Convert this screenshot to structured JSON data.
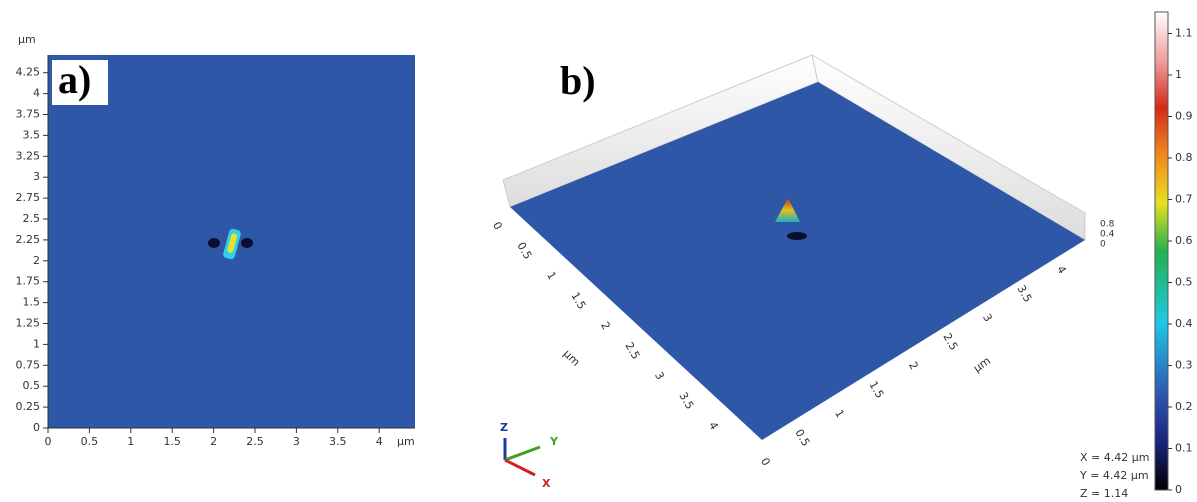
{
  "panel_a": {
    "label": "a)",
    "y_unit": "µm",
    "x_unit": "µm",
    "yticks": [
      0,
      0.25,
      0.5,
      0.75,
      1,
      1.25,
      1.5,
      1.75,
      2,
      2.25,
      2.5,
      2.75,
      3,
      3.25,
      3.5,
      3.75,
      4,
      4.25
    ],
    "xticks": [
      0,
      0.5,
      1,
      1.5,
      2,
      2.5,
      3,
      3.5,
      4
    ]
  },
  "panel_b": {
    "label": "b)",
    "left_ticks": [
      0,
      0.5,
      1,
      1.5,
      2,
      2.5,
      3,
      3.5,
      4
    ],
    "left_unit": "µm",
    "right_ticks": [
      0,
      0.5,
      1,
      1.5,
      2,
      2.5,
      3,
      3.5,
      4
    ],
    "right_unit": "µm",
    "z_ticks": [
      0.8,
      0.4,
      0
    ],
    "triad": {
      "z": "Z",
      "y": "Y",
      "x": "X"
    },
    "readout": [
      "X = 4.42 µm",
      "Y = 4.42 µm",
      "Z = 1.14"
    ]
  },
  "colorbar": {
    "ticks": [
      0,
      0.1,
      0.2,
      0.3,
      0.4,
      0.5,
      0.6,
      0.7,
      0.8,
      0.9,
      1,
      1.1
    ]
  }
}
